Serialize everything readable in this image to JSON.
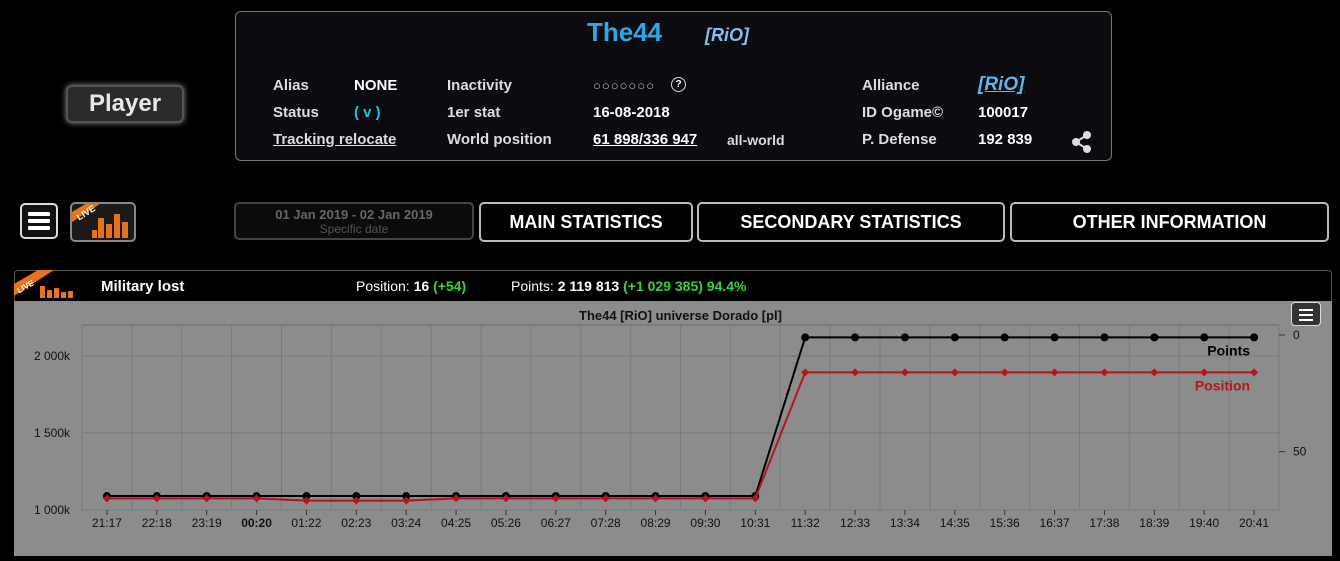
{
  "player": {
    "badge": "Player",
    "name": "The44",
    "tag": "[RiO]",
    "alias_label": "Alias",
    "alias_value": "NONE",
    "status_label": "Status",
    "status_value": "( v )",
    "tracking_link": "Tracking relocate",
    "inactivity_label": "Inactivity",
    "inactivity_value": "○○○○○○○",
    "help_icon": "?",
    "first_stat_label": "1er stat",
    "first_stat_value": "16-08-2018",
    "world_position_label": "World position",
    "world_position_value": "61 898/336 947",
    "world_position_suffix": "all-world",
    "alliance_label": "Alliance",
    "alliance_value": "[RiO]",
    "id_label": "ID Ogame©",
    "id_value": "100017",
    "defense_label": "P. Defense",
    "defense_value": "192 839"
  },
  "toolbar": {
    "menu_icon": "hamburger-menu-icon",
    "live_icon": "live-chart-icon",
    "date_range": "01 Jan 2019 - 02 Jan 2019",
    "date_sub": "Specific date",
    "tabs": [
      "MAIN STATISTICS",
      "SECONDARY STATISTICS",
      "OTHER INFORMATION"
    ]
  },
  "stats_bar": {
    "live_label": "LIVE",
    "category": "Military lost",
    "position_label": "Position:",
    "position_value": "16",
    "position_delta": "(+54)",
    "points_label": "Points:",
    "points_value": "2 119 813",
    "points_delta": "(+1 029 385)",
    "points_pct": "94.4%"
  },
  "colors": {
    "points": "#000000",
    "position": "#b5161d",
    "chart_bg": "#8c8c8c",
    "name": "#2ea7e8",
    "green": "#38d23a"
  },
  "chart_data": {
    "type": "line",
    "title": "The44 [RiO] universe Dorado [pl]",
    "x": [
      "21:17",
      "22:18",
      "23:19",
      "00:20",
      "01:22",
      "02:23",
      "03:24",
      "04:25",
      "05:26",
      "06:27",
      "07:28",
      "08:29",
      "09:30",
      "10:31",
      "11:32",
      "12:33",
      "13:34",
      "14:35",
      "15:36",
      "16:37",
      "17:38",
      "18:39",
      "19:40",
      "20:41"
    ],
    "y_left": {
      "ticks": [
        "1 000k",
        "1 500k",
        "2 000k"
      ],
      "min": 1000000,
      "max": 2200000
    },
    "y_right": {
      "ticks": [
        "0",
        "50"
      ],
      "reversed": true,
      "min": 0,
      "max": 75
    },
    "series": [
      {
        "name": "Points",
        "axis": "left",
        "values": [
          1090428,
          1090428,
          1090428,
          1090428,
          1090428,
          1090428,
          1090428,
          1090428,
          1090428,
          1090428,
          1090428,
          1090428,
          1090428,
          1090428,
          2119813,
          2119813,
          2119813,
          2119813,
          2119813,
          2119813,
          2119813,
          2119813,
          2119813,
          2119813
        ]
      },
      {
        "name": "Position",
        "axis": "right",
        "values": [
          70,
          70,
          70,
          70,
          71,
          71,
          71,
          70,
          70,
          70,
          70,
          70,
          70,
          70,
          16,
          16,
          16,
          16,
          16,
          16,
          16,
          16,
          16,
          16
        ]
      }
    ],
    "grid": true
  }
}
